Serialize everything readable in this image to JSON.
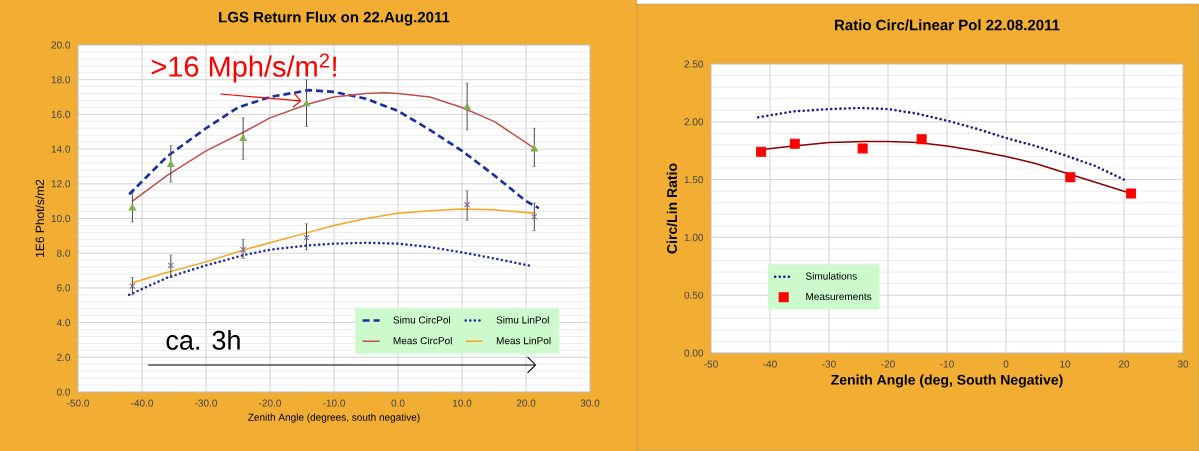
{
  "chart_data": [
    {
      "type": "line",
      "title": "LGS Return Flux on 22.Aug.2011",
      "xlabel": "Zenith Angle (degrees, south negative)",
      "ylabel": "1E6 Phot/s/m2",
      "xlim": [
        -50,
        30
      ],
      "xticks": [
        {
          "value": -50,
          "label": "-50.0"
        },
        {
          "value": -40,
          "label": "-40.0"
        },
        {
          "value": -30,
          "label": "-30.0"
        },
        {
          "value": -20,
          "label": "-20.0"
        },
        {
          "value": -10,
          "label": "-10.0"
        },
        {
          "value": 0,
          "label": "0.0"
        },
        {
          "value": 10,
          "label": "10.0"
        },
        {
          "value": 20,
          "label": "20.0"
        },
        {
          "value": 30,
          "label": "30.0"
        }
      ],
      "ylim": [
        0,
        20
      ],
      "yticks": [
        {
          "value": 0,
          "label": "0.0"
        },
        {
          "value": 2,
          "label": "2.0"
        },
        {
          "value": 4,
          "label": "4.0"
        },
        {
          "value": 6,
          "label": "6.0"
        },
        {
          "value": 8,
          "label": "8.0"
        },
        {
          "value": 10,
          "label": "10.0"
        },
        {
          "value": 12,
          "label": "12.0"
        },
        {
          "value": 14,
          "label": "14.0"
        },
        {
          "value": 16,
          "label": "16.0"
        },
        {
          "value": 18,
          "label": "18.0"
        },
        {
          "value": 20,
          "label": "20.0"
        }
      ],
      "grid": true,
      "legend": "bottom right",
      "series": [
        {
          "name": "Simu CircPol",
          "color": "#1c2fa0",
          "line_style": "dashed",
          "marker": "none",
          "x": [
            -42,
            -36,
            -30,
            -25,
            -20,
            -14,
            -10,
            -5,
            0,
            5,
            10,
            15,
            20,
            22
          ],
          "values": [
            11.4,
            13.6,
            15.2,
            16.4,
            17.0,
            17.4,
            17.3,
            16.9,
            16.2,
            15.1,
            13.9,
            12.5,
            11.0,
            10.6
          ]
        },
        {
          "name": "Simu LinPol",
          "color": "#1c2fa0",
          "line_style": "dotted",
          "marker": "none",
          "x": [
            -42,
            -36,
            -30,
            -24,
            -20,
            -14,
            -10,
            -5,
            0,
            5,
            10,
            15,
            21
          ],
          "values": [
            5.6,
            6.6,
            7.3,
            7.9,
            8.2,
            8.45,
            8.55,
            8.6,
            8.55,
            8.35,
            8.05,
            7.7,
            7.25
          ]
        },
        {
          "name": "Meas CircPol",
          "color": "#c0504d",
          "line_style": "solid",
          "marker": "none",
          "x": [
            -41.5,
            -36,
            -30,
            -24,
            -20,
            -14,
            -10,
            -5,
            -2,
            0,
            5,
            10,
            15,
            21.5
          ],
          "values": [
            11.0,
            12.5,
            13.9,
            15.0,
            15.8,
            16.6,
            17.0,
            17.2,
            17.25,
            17.2,
            17.0,
            16.4,
            15.6,
            14.0
          ]
        },
        {
          "name": "Meas LinPol",
          "color": "#f7a520",
          "line_style": "solid",
          "marker": "none",
          "x": [
            -41.5,
            -36,
            -30,
            -24,
            -20,
            -14,
            -10,
            -5,
            0,
            5,
            10,
            15,
            21.5
          ],
          "values": [
            6.3,
            6.9,
            7.5,
            8.2,
            8.6,
            9.2,
            9.6,
            10.0,
            10.3,
            10.45,
            10.55,
            10.5,
            10.3
          ]
        },
        {
          "type": "scatter",
          "color": "#7fae4a",
          "marker": "triangle",
          "x": [
            -41.5,
            -35.5,
            -24.2,
            -14.3,
            10.8,
            21.3
          ],
          "values": [
            10.6,
            13.1,
            14.6,
            16.6,
            16.4,
            14.0
          ],
          "errors": [
            [
              9.8,
              11.5
            ],
            [
              12.1,
              14.2
            ],
            [
              13.4,
              15.8
            ],
            [
              15.3,
              18.0
            ],
            [
              15.1,
              17.8
            ],
            [
              13.0,
              15.2
            ]
          ]
        },
        {
          "type": "scatter",
          "color": "#8064a2",
          "marker": "cross",
          "x": [
            -41.5,
            -35.5,
            -24.2,
            -14.3,
            10.8,
            21.3
          ],
          "values": [
            6.1,
            7.3,
            8.2,
            8.9,
            10.8,
            10.1
          ],
          "errors": [
            [
              5.6,
              6.6
            ],
            [
              6.6,
              7.9
            ],
            [
              7.7,
              8.8
            ],
            [
              8.2,
              9.7
            ],
            [
              9.9,
              11.6
            ],
            [
              9.3,
              10.9
            ]
          ]
        }
      ],
      "annotations": [
        {
          "text": ">16 Mph/s/m$^{2}$!",
          "x": -14.3,
          "y": 16.6
        },
        "ca. 3h"
      ]
    },
    {
      "type": "line",
      "title": "Ratio Circ/Linear Pol 22.08.2011",
      "xlabel": "Zenith Angle (deg, South Negative)",
      "ylabel": "Circ/Lin Ratio",
      "xlim": [
        -50,
        30
      ],
      "xticks": [
        -50,
        -40,
        -30,
        -20,
        -10,
        0,
        10,
        20,
        30
      ],
      "ylim": [
        0,
        2.5
      ],
      "yticks": [
        {
          "value": 0,
          "label": "0.00"
        },
        {
          "value": 0.5,
          "label": "0.50"
        },
        {
          "value": 1,
          "label": "1.00"
        },
        {
          "value": 1.5,
          "label": "1.50"
        },
        {
          "value": 2,
          "label": "2.00"
        },
        {
          "value": 2.5,
          "label": "2.50"
        }
      ],
      "grid": true,
      "legend": "bottom left",
      "series": [
        {
          "name": "Simulations",
          "color": "#1a1a8c",
          "line_style": "dotted",
          "marker": "none",
          "x": [
            -42,
            -36,
            -30,
            -25,
            -20,
            -15,
            -10,
            -5,
            0,
            5,
            10,
            15,
            20
          ],
          "values": [
            2.04,
            2.09,
            2.11,
            2.12,
            2.11,
            2.07,
            2.01,
            1.94,
            1.86,
            1.79,
            1.71,
            1.62,
            1.5
          ]
        },
        {
          "name": "Measurements",
          "type": "scatter",
          "color": "#ff0000",
          "marker": "square",
          "x": [
            -41.5,
            -35.8,
            -24.3,
            -14.3,
            10.9,
            21.2
          ],
          "values": [
            1.74,
            1.81,
            1.77,
            1.85,
            1.52,
            1.38
          ]
        },
        {
          "color": "#8b0000",
          "line_style": "solid",
          "marker": "none",
          "x": [
            -41.5,
            -36,
            -30,
            -24,
            -20,
            -15,
            -10,
            -5,
            0,
            5,
            10,
            15,
            21.2
          ],
          "values": [
            1.76,
            1.79,
            1.82,
            1.83,
            1.83,
            1.82,
            1.79,
            1.75,
            1.7,
            1.64,
            1.56,
            1.48,
            1.38
          ]
        }
      ]
    }
  ]
}
